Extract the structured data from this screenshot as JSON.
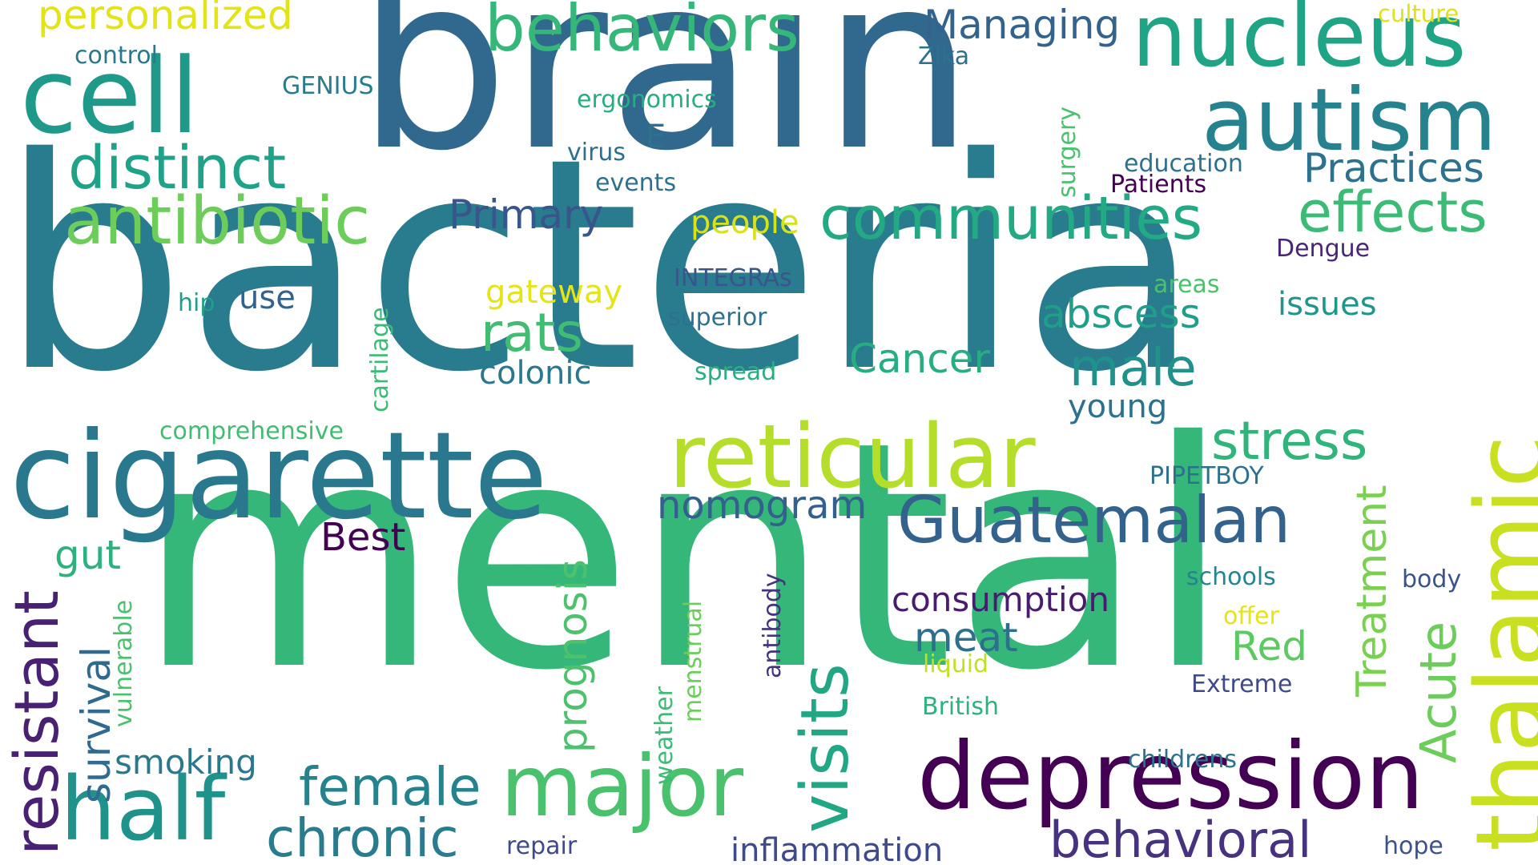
{
  "word_cloud": {
    "words": [
      {
        "id": "bacteria",
        "text": "bacteria",
        "color": "#297b8e"
      },
      {
        "id": "mental",
        "text": "mental",
        "color": "#35b779"
      },
      {
        "id": "brain",
        "text": "brain",
        "color": "#31688e"
      },
      {
        "id": "cigarette",
        "text": "cigarette",
        "color": "#2a788e"
      },
      {
        "id": "reticular",
        "text": "reticular",
        "color": "#b5de2b"
      },
      {
        "id": "depression",
        "text": "depression",
        "color": "#440154"
      },
      {
        "id": "nucleus",
        "text": "nucleus",
        "color": "#20a486"
      },
      {
        "id": "autism",
        "text": "autism",
        "color": "#26828e"
      },
      {
        "id": "cell",
        "text": "cell",
        "color": "#1f9a8a"
      },
      {
        "id": "thalamic",
        "text": "thalamic",
        "color": "#c8e020"
      },
      {
        "id": "half",
        "text": "half",
        "color": "#20928c"
      },
      {
        "id": "major",
        "text": "major",
        "color": "#4ac16d"
      },
      {
        "id": "behaviors",
        "text": "behaviors",
        "color": "#35b779"
      },
      {
        "id": "antibiotic",
        "text": "antibiotic",
        "color": "#6ccd5a"
      },
      {
        "id": "distinct",
        "text": "distinct",
        "color": "#1fa287"
      },
      {
        "id": "communities",
        "text": "communities",
        "color": "#23a983"
      },
      {
        "id": "effects",
        "text": "effects",
        "color": "#3bbb75"
      },
      {
        "id": "guatemalan",
        "text": "Guatemalan",
        "color": "#33638d"
      },
      {
        "id": "visits",
        "text": "visits",
        "color": "#22a785"
      },
      {
        "id": "behavioral",
        "text": "behavioral",
        "color": "#46327e"
      },
      {
        "id": "resistant",
        "text": "resistant",
        "color": "#482173"
      },
      {
        "id": "acute",
        "text": "Acute",
        "color": "#6ccd5a"
      },
      {
        "id": "chronic",
        "text": "chronic",
        "color": "#287c8e"
      },
      {
        "id": "female",
        "text": "female",
        "color": "#25838e"
      },
      {
        "id": "stress",
        "text": "stress",
        "color": "#2fb47c"
      },
      {
        "id": "personalized",
        "text": "personalized",
        "color": "#e2e418"
      },
      {
        "id": "rats",
        "text": "rats",
        "color": "#40bd72"
      },
      {
        "id": "male",
        "text": "male",
        "color": "#21918c"
      },
      {
        "id": "treatment",
        "text": "Treatment",
        "color": "#7ad151"
      },
      {
        "id": "practices",
        "text": "Practices",
        "color": "#2c728e"
      },
      {
        "id": "abscess",
        "text": "abscess",
        "color": "#1f9e89"
      },
      {
        "id": "survival",
        "text": "survival",
        "color": "#306a8e"
      },
      {
        "id": "prognosis",
        "text": "prognosis",
        "color": "#4cc26c"
      },
      {
        "id": "nomogram",
        "text": "nomogram",
        "color": "#34608d"
      },
      {
        "id": "primary",
        "text": "Primary",
        "color": "#39568c"
      },
      {
        "id": "managing",
        "text": "Managing",
        "color": "#33638d"
      },
      {
        "id": "cancer",
        "text": "Cancer",
        "color": "#27ad81"
      },
      {
        "id": "best",
        "text": "Best",
        "color": "#440154"
      },
      {
        "id": "consumption",
        "text": "consumption",
        "color": "#481d6f"
      },
      {
        "id": "gut",
        "text": "gut",
        "color": "#2db27d"
      },
      {
        "id": "meat",
        "text": "meat",
        "color": "#2d708e"
      },
      {
        "id": "red",
        "text": "Red",
        "color": "#5ec962"
      },
      {
        "id": "smoking",
        "text": "smoking",
        "color": "#2a788e"
      },
      {
        "id": "inflammation",
        "text": "inflammation",
        "color": "#3e4a89"
      },
      {
        "id": "colonic",
        "text": "colonic",
        "color": "#2a788e"
      },
      {
        "id": "gateway",
        "text": "gateway",
        "color": "#e5e419"
      },
      {
        "id": "young",
        "text": "young",
        "color": "#2c728e"
      },
      {
        "id": "issues",
        "text": "issues",
        "color": "#1f968b"
      },
      {
        "id": "people",
        "text": "people",
        "color": "#d8e219"
      },
      {
        "id": "use",
        "text": "use",
        "color": "#33638d"
      },
      {
        "id": "e",
        "text": "E",
        "color": "#2c728e"
      },
      {
        "id": "genius",
        "text": "GENIUS",
        "color": "#287c8e"
      },
      {
        "id": "control",
        "text": "control",
        "color": "#2a788e"
      },
      {
        "id": "zika",
        "text": "Zika",
        "color": "#2c728e"
      },
      {
        "id": "culture",
        "text": "culture",
        "color": "#dde318"
      },
      {
        "id": "ergonomics",
        "text": "ergonomics",
        "color": "#27ad81"
      },
      {
        "id": "virus",
        "text": "virus",
        "color": "#2d708e"
      },
      {
        "id": "events",
        "text": "events",
        "color": "#2c728e"
      },
      {
        "id": "surgery",
        "text": "surgery",
        "color": "#4ac16d"
      },
      {
        "id": "education",
        "text": "education",
        "color": "#2c728e"
      },
      {
        "id": "patients",
        "text": "Patients",
        "color": "#440154"
      },
      {
        "id": "dengue",
        "text": "Dengue",
        "color": "#482677"
      },
      {
        "id": "integras",
        "text": "INTEGRAs",
        "color": "#39568c"
      },
      {
        "id": "areas",
        "text": "areas",
        "color": "#4ac16d"
      },
      {
        "id": "hip",
        "text": "hip",
        "color": "#1f9e89"
      },
      {
        "id": "superior",
        "text": "superior",
        "color": "#2c728e"
      },
      {
        "id": "cartilage",
        "text": "cartilage",
        "color": "#3bbb75"
      },
      {
        "id": "spread",
        "text": "spread",
        "color": "#29af7f"
      },
      {
        "id": "comprehensive",
        "text": "comprehensive",
        "color": "#40bd72"
      },
      {
        "id": "pipetboy",
        "text": "PIPETBOY",
        "color": "#2c728e"
      },
      {
        "id": "schools",
        "text": "schools",
        "color": "#25848e"
      },
      {
        "id": "body",
        "text": "body",
        "color": "#3b528b"
      },
      {
        "id": "offer",
        "text": "offer",
        "color": "#e5e419"
      },
      {
        "id": "liquid",
        "text": "liquid",
        "color": "#c2df23"
      },
      {
        "id": "british",
        "text": "British",
        "color": "#2db27d"
      },
      {
        "id": "extreme",
        "text": "Extreme",
        "color": "#3e4a89"
      },
      {
        "id": "antibody",
        "text": "antibody",
        "color": "#46337e"
      },
      {
        "id": "menstrual",
        "text": "menstrual",
        "color": "#6ccd5a"
      },
      {
        "id": "weather",
        "text": "weather",
        "color": "#3bbb75"
      },
      {
        "id": "vulnerable",
        "text": "vulnerable",
        "color": "#4ac16d"
      },
      {
        "id": "childrens",
        "text": "childrens",
        "color": "#2c728e"
      },
      {
        "id": "repair",
        "text": "repair",
        "color": "#3e4a89"
      },
      {
        "id": "hope",
        "text": "hope",
        "color": "#3b528b"
      }
    ]
  }
}
